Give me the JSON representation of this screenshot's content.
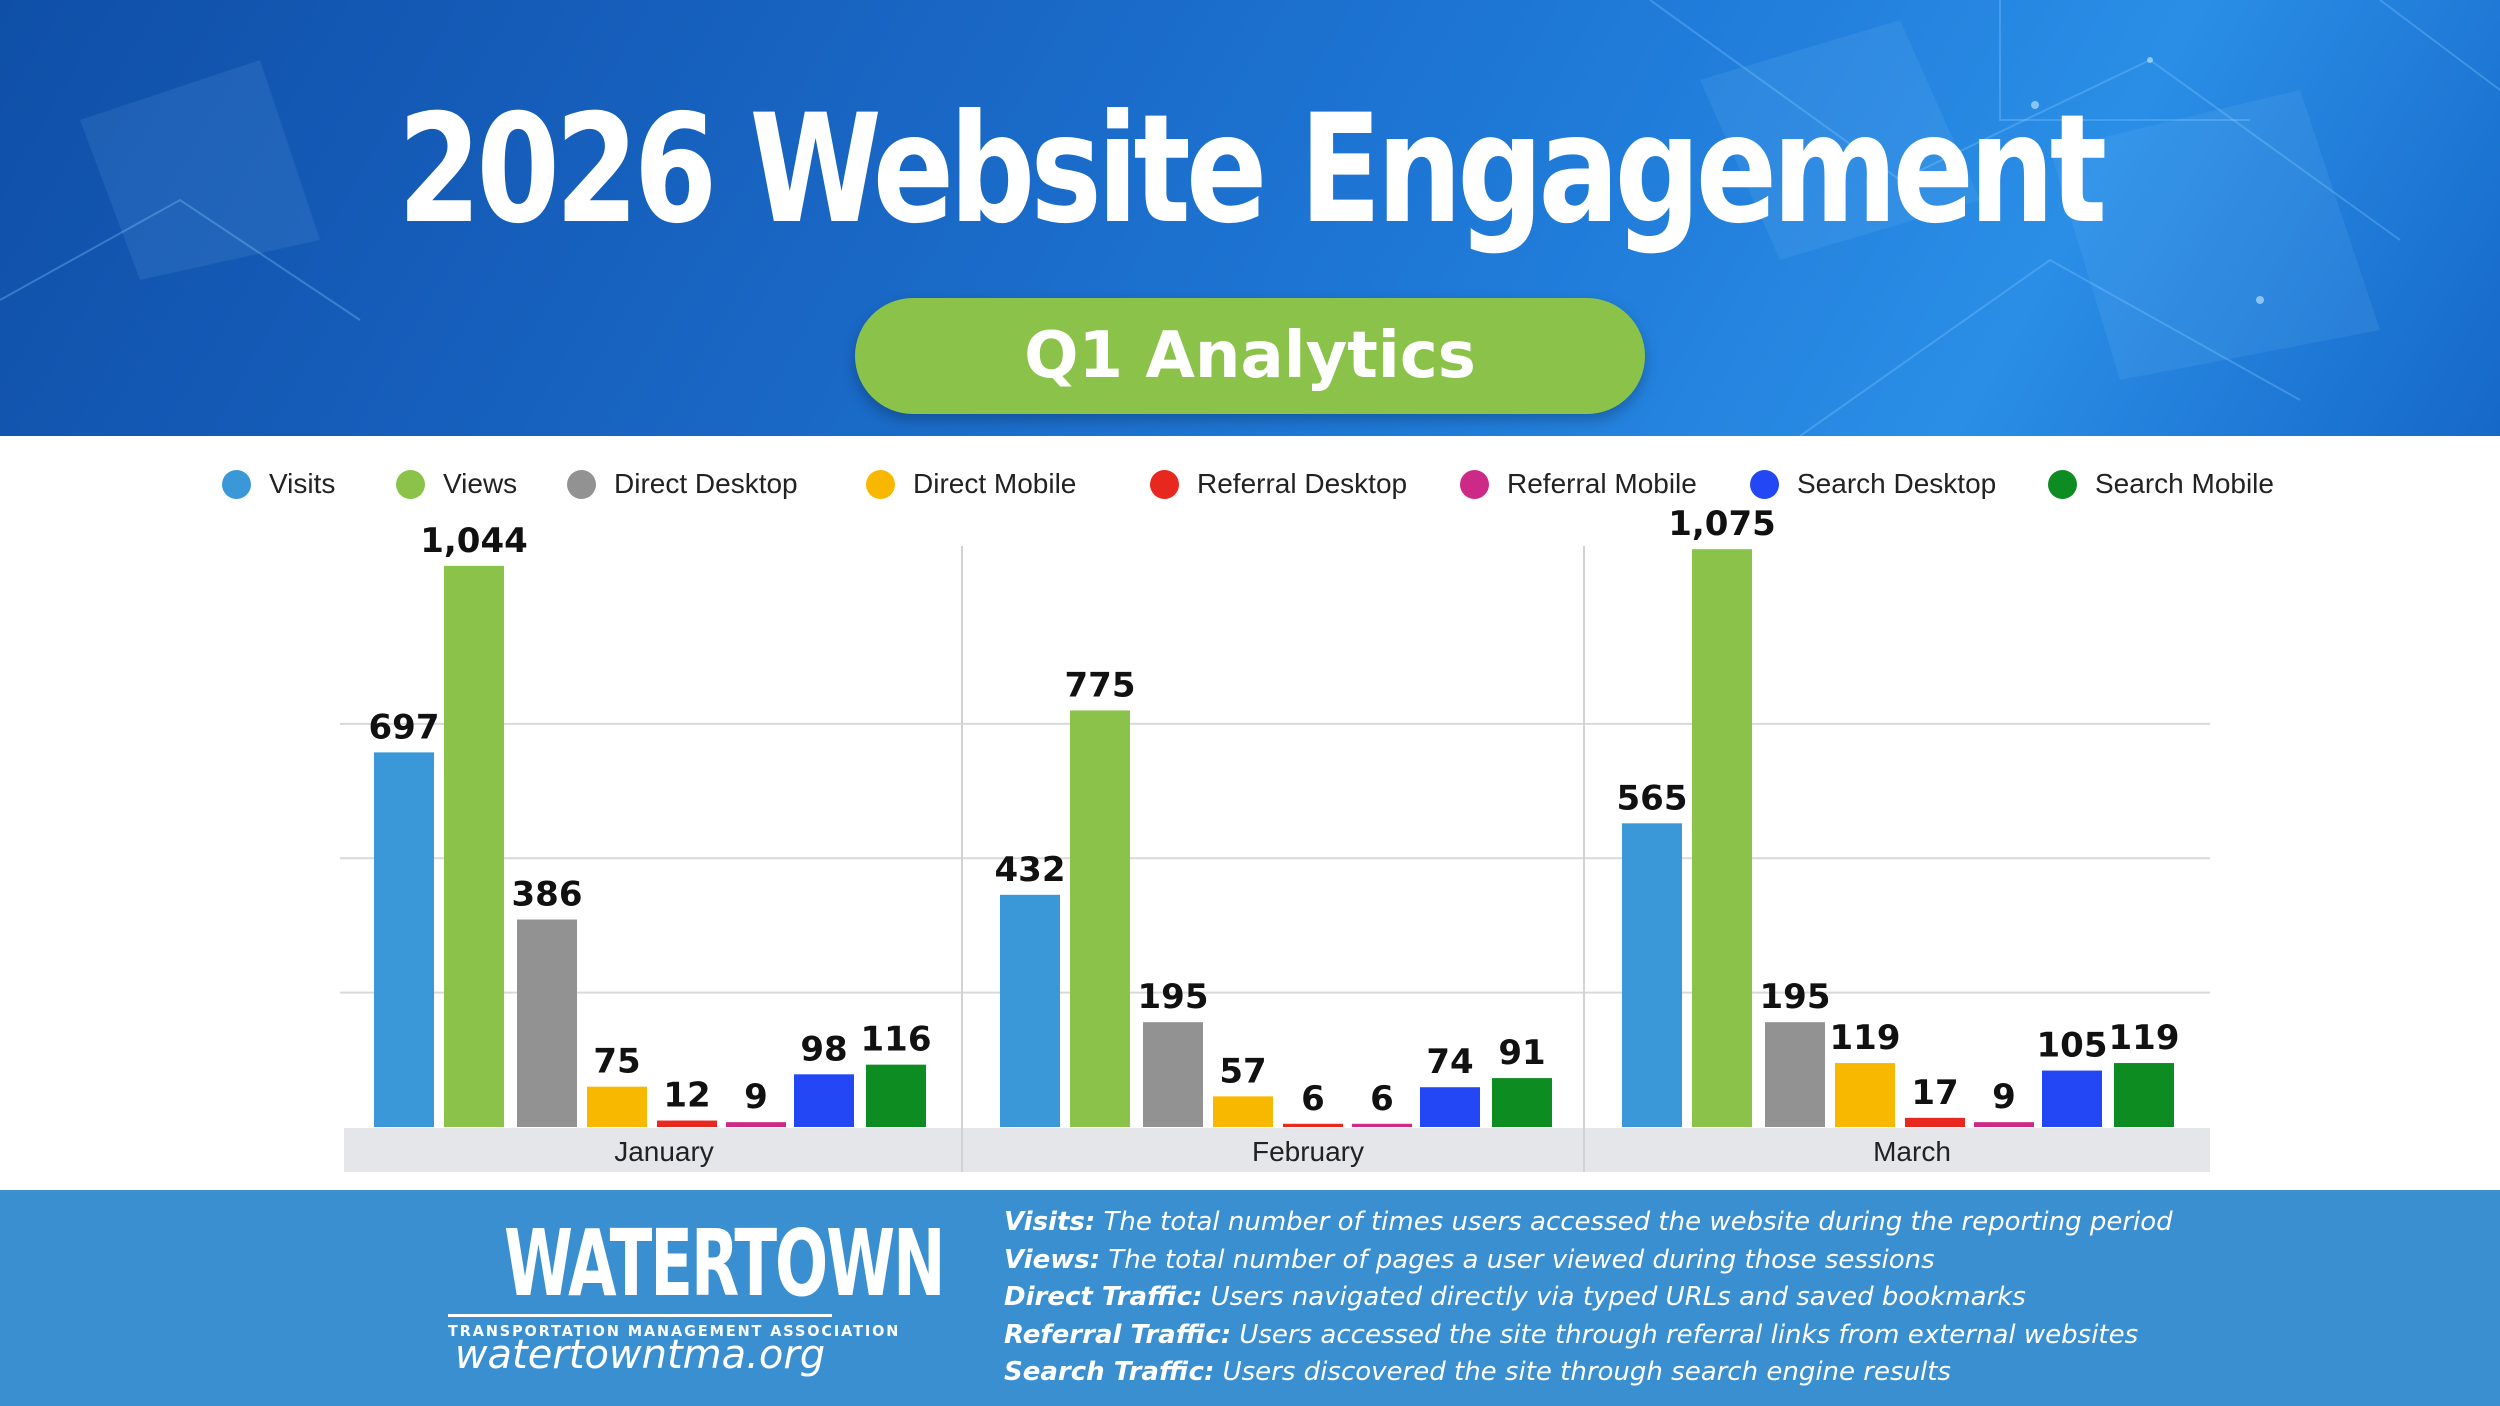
{
  "header": {
    "title": "2026 Website Engagement",
    "subtitle": "Q1 Analytics"
  },
  "colors": {
    "header_blue": "#1966c4",
    "pill_green": "#8bc34a",
    "footer_blue": "#3a8fd0"
  },
  "chart_data": {
    "type": "bar",
    "categories": [
      "January",
      "February",
      "March"
    ],
    "series": [
      {
        "name": "Visits",
        "color": "#3a98d8",
        "values": [
          697,
          432,
          565
        ],
        "labels": [
          "697",
          "432",
          "565"
        ]
      },
      {
        "name": "Views",
        "color": "#8bc34a",
        "values": [
          1044,
          775,
          1075
        ],
        "labels": [
          "1,044",
          "775",
          "1,075"
        ]
      },
      {
        "name": "Direct Desktop",
        "color": "#929292",
        "values": [
          386,
          195,
          195
        ],
        "labels": [
          "386",
          "195",
          "195"
        ]
      },
      {
        "name": "Direct Mobile",
        "color": "#f9b800",
        "values": [
          75,
          57,
          119
        ],
        "labels": [
          "75",
          "57",
          "119"
        ]
      },
      {
        "name": "Referral Desktop",
        "color": "#e8271e",
        "values": [
          12,
          6,
          17
        ],
        "labels": [
          "12",
          "6",
          "17"
        ]
      },
      {
        "name": "Referral Mobile",
        "color": "#cc2a86",
        "values": [
          9,
          6,
          9
        ],
        "labels": [
          "9",
          "6",
          "9"
        ]
      },
      {
        "name": "Search Desktop",
        "color": "#2347f5",
        "values": [
          98,
          74,
          105
        ],
        "labels": [
          "98",
          "74",
          "105"
        ]
      },
      {
        "name": "Search Mobile",
        "color": "#0d8c22",
        "values": [
          116,
          91,
          119
        ],
        "labels": [
          "116",
          "91",
          "119"
        ]
      }
    ],
    "ylim": [
      0,
      1100
    ],
    "grid": true,
    "legend": "top"
  },
  "footer": {
    "logo_text": "WATERTOWN",
    "logo_subtext": "TRANSPORTATION MANAGEMENT ASSOCIATION",
    "url": "watertowntma.org",
    "definitions": [
      {
        "term": "Visits:",
        "text": "The total number of times users accessed the website during the reporting period"
      },
      {
        "term": "Views:",
        "text": "The total number of pages a user viewed during those sessions"
      },
      {
        "term": "Direct Traffic:",
        "text": "Users navigated directly via typed URLs and saved bookmarks"
      },
      {
        "term": "Referral Traffic:",
        "text": "Users accessed the site through referral links from external websites"
      },
      {
        "term": "Search Traffic:",
        "text": "Users discovered the site through search engine results"
      }
    ]
  }
}
